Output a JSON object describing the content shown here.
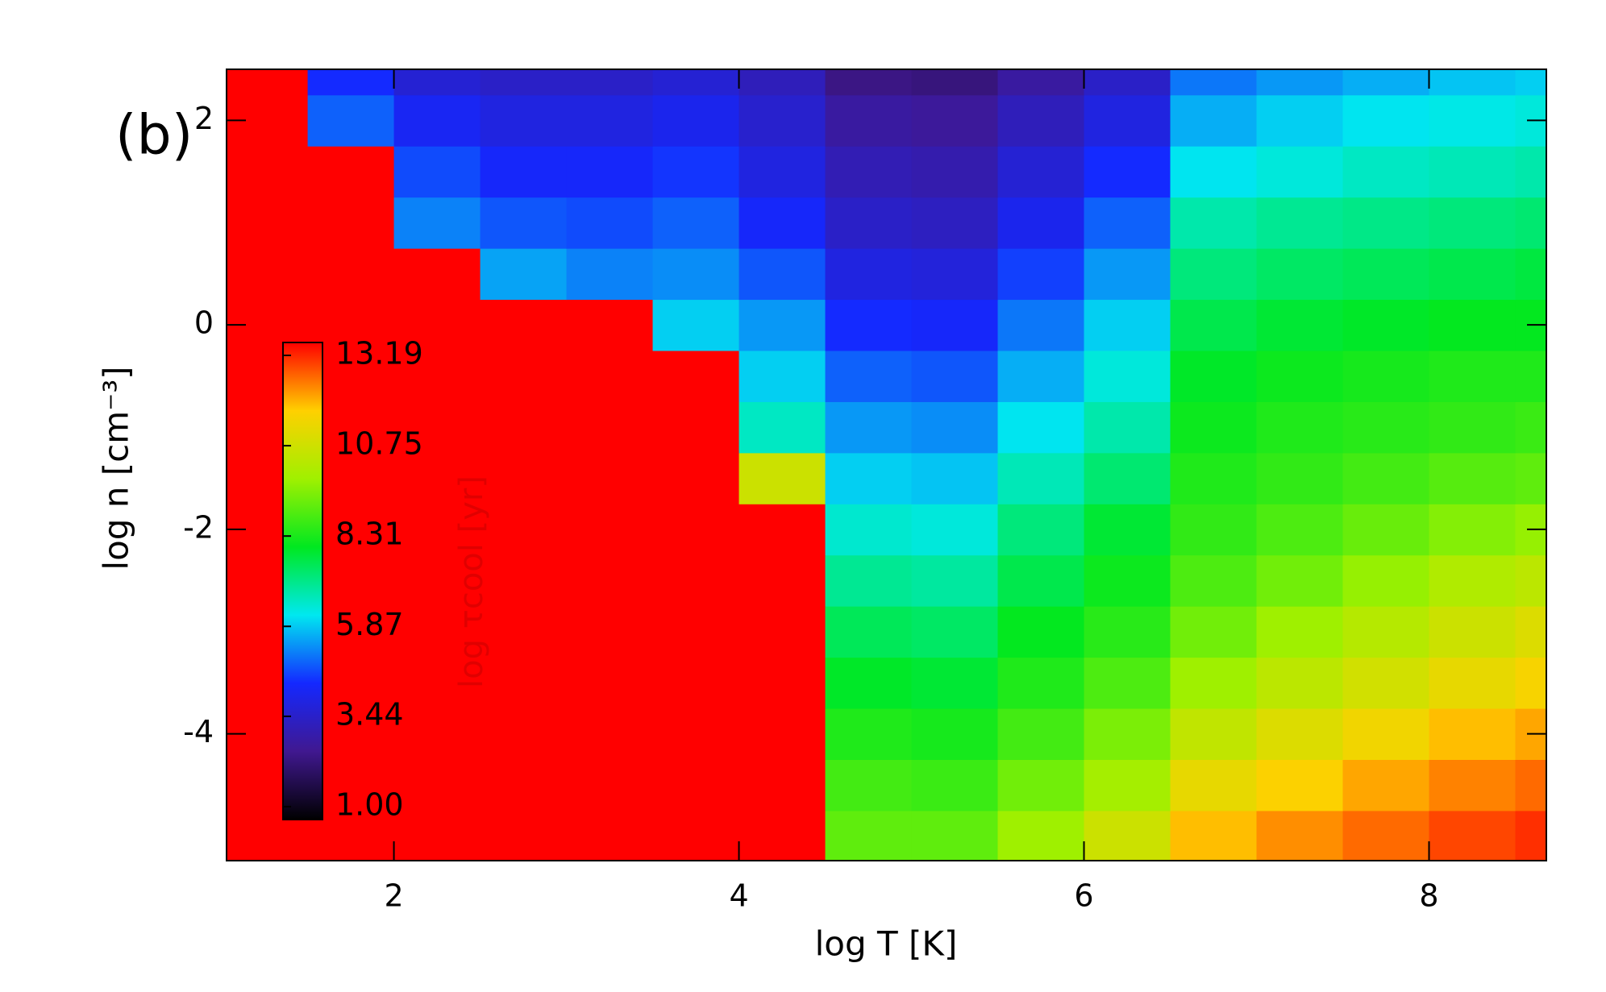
{
  "chart_data": {
    "type": "heatmap",
    "panel_label": "(b)",
    "xlabel": "log T [K]",
    "ylabel": "log n [cm⁻³]",
    "colorbar_label": "log τcool [yr]",
    "xlim": [
      1.03,
      8.68
    ],
    "xticks": [
      2,
      4,
      6,
      8
    ],
    "ylim": [
      -5.24,
      2.5
    ],
    "yticks": [
      -4,
      -2,
      0,
      2
    ],
    "zlim": [
      1,
      13.19
    ],
    "zticks": [
      {
        "value": 1,
        "label": "1.00"
      },
      {
        "value": 3.44,
        "label": "3.44"
      },
      {
        "value": 5.87,
        "label": "5.87"
      },
      {
        "value": 8.31,
        "label": "8.31"
      },
      {
        "value": 10.75,
        "label": "10.75"
      },
      {
        "value": 13.19,
        "label": "13.19"
      }
    ],
    "colormap": [
      "#000000",
      "#401890",
      "#1428ff",
      "#00e8f0",
      "#00e820",
      "#a0f000",
      "#ffd000",
      "#ff0000"
    ],
    "x": [
      1.25,
      1.75,
      2.25,
      2.75,
      3.25,
      3.75,
      4.25,
      4.75,
      5.25,
      5.75,
      6.25,
      6.75,
      7.25,
      7.75,
      8.25,
      8.75
    ],
    "y": [
      -5,
      -4.5,
      -4,
      -3.5,
      -3,
      -2.5,
      -2,
      -1.5,
      -1,
      -0.5,
      0,
      0.5,
      1,
      1.5,
      2,
      2.5
    ],
    "z": [
      [
        13.2,
        13.2,
        13.2,
        13.2,
        13.2,
        13.2,
        13.2,
        9.0,
        9.0,
        9.7,
        10.5,
        11.6,
        12.0,
        12.3,
        12.6,
        12.8
      ],
      [
        13.2,
        13.2,
        13.2,
        13.2,
        13.2,
        13.2,
        13.2,
        8.7,
        8.6,
        9.2,
        9.8,
        11.0,
        11.4,
        11.8,
        12.1,
        12.3
      ],
      [
        13.2,
        13.2,
        13.2,
        13.2,
        13.2,
        13.2,
        13.2,
        8.3,
        8.2,
        8.7,
        9.3,
        10.3,
        10.8,
        11.2,
        11.6,
        11.8
      ],
      [
        13.2,
        13.2,
        13.2,
        13.2,
        13.2,
        13.2,
        13.2,
        7.9,
        7.8,
        8.3,
        8.8,
        9.7,
        10.2,
        10.6,
        11.0,
        11.3
      ],
      [
        13.2,
        13.2,
        13.2,
        13.2,
        13.2,
        13.2,
        13.2,
        7.5,
        7.4,
        8.0,
        8.4,
        9.2,
        9.7,
        10.1,
        10.5,
        10.8
      ],
      [
        13.2,
        13.2,
        13.2,
        13.2,
        13.2,
        13.2,
        13.2,
        7.0,
        6.9,
        7.6,
        8.1,
        8.8,
        9.2,
        9.6,
        10.0,
        10.2
      ],
      [
        13.2,
        13.2,
        13.2,
        13.2,
        13.2,
        13.2,
        13.2,
        6.5,
        6.4,
        7.2,
        7.8,
        8.5,
        8.8,
        9.1,
        9.4,
        9.6
      ],
      [
        13.2,
        13.2,
        13.2,
        13.2,
        13.2,
        13.2,
        10.5,
        6.0,
        5.9,
        6.7,
        7.3,
        8.3,
        8.5,
        8.7,
        8.9,
        9.0
      ],
      [
        13.2,
        13.2,
        13.2,
        13.2,
        13.2,
        13.2,
        6.6,
        5.5,
        5.4,
        6.2,
        6.8,
        8.1,
        8.3,
        8.4,
        8.5,
        8.6
      ],
      [
        13.2,
        13.2,
        13.2,
        13.2,
        13.2,
        13.2,
        6.0,
        5.0,
        4.9,
        5.7,
        6.4,
        7.9,
        8.1,
        8.2,
        8.3,
        8.3
      ],
      [
        13.2,
        13.2,
        13.2,
        13.2,
        13.2,
        6.0,
        5.5,
        4.5,
        4.4,
        5.2,
        6.0,
        7.6,
        7.8,
        7.9,
        8.0,
        8.0
      ],
      [
        13.2,
        13.2,
        13.2,
        5.6,
        5.3,
        5.4,
        4.9,
        4.0,
        3.9,
        4.7,
        5.5,
        7.2,
        7.4,
        7.5,
        7.6,
        7.7
      ],
      [
        13.2,
        13.2,
        5.3,
        4.9,
        4.8,
        5.0,
        4.4,
        3.6,
        3.5,
        4.2,
        5.0,
        6.8,
        7.0,
        7.1,
        7.2,
        7.3
      ],
      [
        13.2,
        13.2,
        4.8,
        4.4,
        4.4,
        4.6,
        4.0,
        3.3,
        3.2,
        3.8,
        4.5,
        6.2,
        6.4,
        6.6,
        6.7,
        6.8
      ],
      [
        13.2,
        5.0,
        4.3,
        4.0,
        4.0,
        4.2,
        3.7,
        3.0,
        2.9,
        3.4,
        4.0,
        5.7,
        6.0,
        6.2,
        6.3,
        6.4
      ],
      [
        13.2,
        4.5,
        3.8,
        3.6,
        3.6,
        3.8,
        3.4,
        2.6,
        2.5,
        3.0,
        3.6,
        5.2,
        5.5,
        5.7,
        5.9,
        6.0
      ]
    ]
  }
}
